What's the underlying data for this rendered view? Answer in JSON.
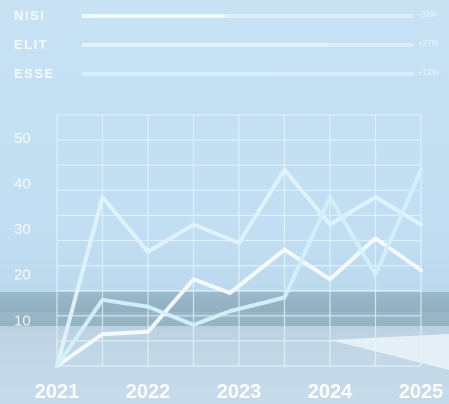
{
  "legend": [
    {
      "name": "NISI",
      "percent": "-32%",
      "fill_fraction": 0.43,
      "color": "#eef8ff"
    },
    {
      "name": "ELIT",
      "percent": "+27%",
      "fill_fraction": 0.74,
      "color": "#def3ff"
    },
    {
      "name": "ESSE",
      "percent": "+12%",
      "fill_fraction": 0.6,
      "color": "#d6f0fb"
    }
  ],
  "chart_data": {
    "type": "line",
    "x_ticks": [
      "2021",
      "2022",
      "2023",
      "2024",
      "2025"
    ],
    "y_ticks": [
      "10",
      "20",
      "30",
      "40",
      "50"
    ],
    "xlim": [
      2021,
      2025
    ],
    "ylim": [
      0,
      55
    ],
    "grid": true,
    "series": [
      {
        "name": "NISI",
        "color": "#f6fbff",
        "x": [
          2021,
          2021.5,
          2022,
          2022.5,
          2022.9,
          2023.5,
          2024,
          2024.5,
          2025
        ],
        "values": [
          0,
          7,
          7.5,
          19,
          16,
          25.5,
          19,
          28,
          21
        ]
      },
      {
        "name": "ELIT",
        "color": "#dff3ff",
        "x": [
          2021,
          2021.5,
          2022,
          2022.5,
          2023,
          2023.5,
          2024,
          2024.5,
          2025
        ],
        "values": [
          0,
          37,
          25,
          31,
          27,
          43,
          31,
          37,
          31
        ]
      },
      {
        "name": "ESSE",
        "color": "#d3f0fb",
        "x": [
          2021,
          2021.5,
          2022,
          2022.5,
          2022.9,
          2023.5,
          2024,
          2024.5,
          2025
        ],
        "values": [
          0,
          14.5,
          13,
          9,
          12,
          15,
          37,
          20,
          43
        ]
      }
    ]
  }
}
